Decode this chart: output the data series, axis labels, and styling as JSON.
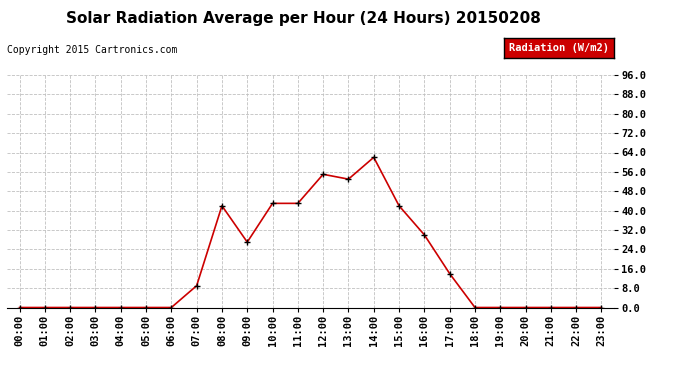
{
  "title": "Solar Radiation Average per Hour (24 Hours) 20150208",
  "copyright": "Copyright 2015 Cartronics.com",
  "legend_label": "Radiation (W/m2)",
  "hours": [
    "00:00",
    "01:00",
    "02:00",
    "03:00",
    "04:00",
    "05:00",
    "06:00",
    "07:00",
    "08:00",
    "09:00",
    "10:00",
    "11:00",
    "12:00",
    "13:00",
    "14:00",
    "15:00",
    "16:00",
    "17:00",
    "18:00",
    "19:00",
    "20:00",
    "21:00",
    "22:00",
    "23:00"
  ],
  "values": [
    0,
    0,
    0,
    0,
    0,
    0,
    0,
    9,
    42,
    27,
    43,
    43,
    55,
    53,
    62,
    42,
    30,
    14,
    0,
    0,
    0,
    0,
    0,
    0
  ],
  "line_color": "#cc0000",
  "marker_color": "#000000",
  "background_color": "#ffffff",
  "grid_color": "#c0c0c0",
  "ylim": [
    0,
    96
  ],
  "yticks": [
    0.0,
    8.0,
    16.0,
    24.0,
    32.0,
    40.0,
    48.0,
    56.0,
    64.0,
    72.0,
    80.0,
    88.0,
    96.0
  ],
  "legend_bg": "#cc0000",
  "legend_text_color": "#ffffff",
  "title_fontsize": 11,
  "copyright_fontsize": 7,
  "tick_fontsize": 7.5
}
